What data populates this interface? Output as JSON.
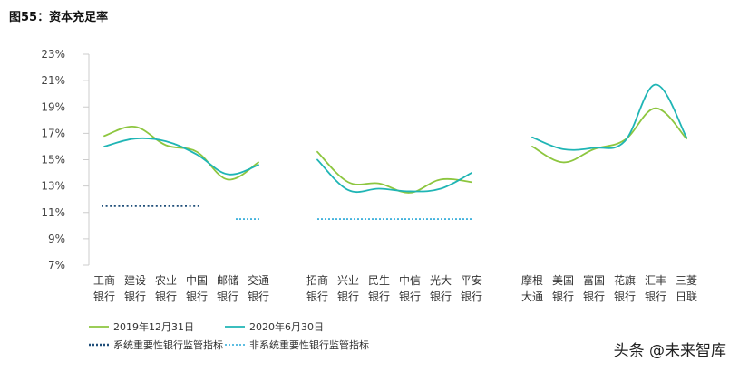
{
  "title": "图55：资本充足率",
  "watermark": "头条 @未来智库",
  "chart_data": {
    "type": "line",
    "ylabel": "",
    "ylim": [
      7,
      23
    ],
    "yticks": [
      "23%",
      "21%",
      "19%",
      "17%",
      "15%",
      "13%",
      "11%",
      "9%",
      "7%"
    ],
    "grid": false,
    "groups": [
      {
        "banks": [
          [
            "工商",
            "银行"
          ],
          [
            "建设",
            "银行"
          ],
          [
            "农业",
            "银行"
          ],
          [
            "中国",
            "银行"
          ],
          [
            "邮储",
            "银行"
          ],
          [
            "交通",
            "银行"
          ]
        ],
        "series": [
          {
            "name": "2019年12月31日",
            "values": [
              16.8,
              17.5,
              16.1,
              15.6,
              13.5,
              14.8
            ]
          },
          {
            "name": "2020年6月30日",
            "values": [
              16.0,
              16.6,
              16.4,
              15.4,
              13.9,
              14.6
            ]
          }
        ],
        "reference": {
          "name": "系统重要性银行监管指标",
          "value": 11.5
        }
      },
      {
        "banks": [
          [
            "招商",
            "银行"
          ],
          [
            "兴业",
            "银行"
          ],
          [
            "民生",
            "银行"
          ],
          [
            "中信",
            "银行"
          ],
          [
            "光大",
            "银行"
          ],
          [
            "平安",
            "银行"
          ]
        ],
        "series": [
          {
            "name": "2019年12月31日",
            "values": [
              15.6,
              13.3,
              13.2,
              12.5,
              13.5,
              13.3
            ]
          },
          {
            "name": "2020年6月30日",
            "values": [
              15.0,
              12.7,
              12.8,
              12.6,
              12.8,
              14.0
            ]
          }
        ],
        "reference": {
          "name": "非系统重要性银行监管指标",
          "value": 10.5
        }
      },
      {
        "banks": [
          [
            "摩根",
            "大通"
          ],
          [
            "美国",
            "银行"
          ],
          [
            "富国",
            "银行"
          ],
          [
            "花旗",
            "银行"
          ],
          [
            "汇丰",
            "银行"
          ],
          [
            "三菱",
            "日联"
          ]
        ],
        "series": [
          {
            "name": "2019年12月31日",
            "values": [
              16.0,
              14.8,
              15.8,
              16.5,
              18.9,
              16.6
            ]
          },
          {
            "name": "2020年6月30日",
            "values": [
              16.7,
              15.8,
              15.9,
              16.4,
              20.7,
              16.7
            ]
          }
        ]
      }
    ],
    "legend": [
      {
        "name": "2019年12月31日",
        "style": "solid",
        "color": "#8dc63f"
      },
      {
        "name": "2020年6月30日",
        "style": "solid",
        "color": "#1fb5b5"
      },
      {
        "name": "系统重要性银行监管指标",
        "style": "dotted",
        "color": "#1f4e79"
      },
      {
        "name": "非系统重要性银行监管指标",
        "style": "dotted",
        "color": "#29a8d8"
      }
    ],
    "colors": {
      "s2019": "#8dc63f",
      "s2020": "#1fb5b5",
      "ref_sys": "#1f4e79",
      "ref_nonsys": "#29a8d8",
      "axis": "#cccccc"
    }
  }
}
